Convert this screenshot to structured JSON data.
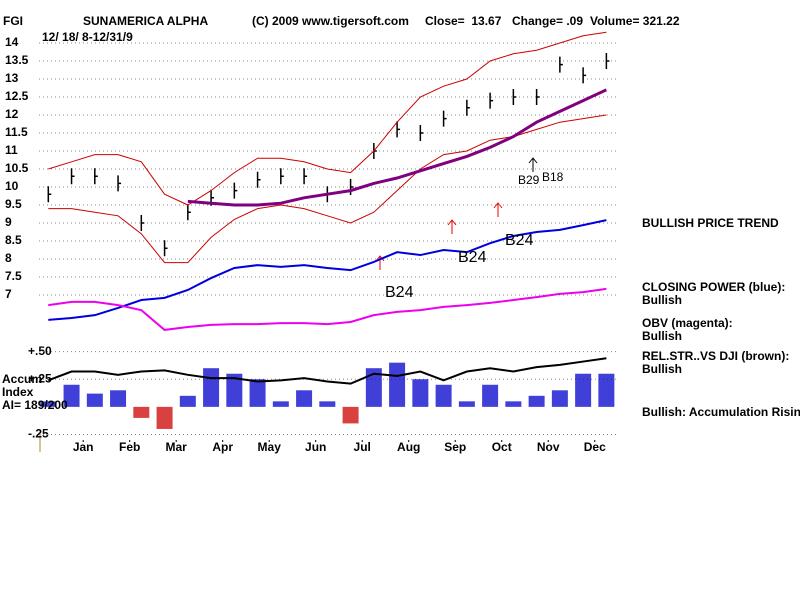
{
  "header": {
    "symbol": "FGI",
    "name": "SUNAMERICA ALPHA",
    "copyright": "(C) 2009 www.tigersoft.com",
    "close": "Close=  13.67",
    "change": "Change= .09",
    "volume": "Volume= 321.22",
    "dates": "12/ 18/ 8-12/31/9"
  },
  "chart_data": [
    {
      "type": "price",
      "note": "BULLISH PRICE TREND",
      "x": [
        -0.25,
        0.25,
        0.75,
        1.25,
        1.75,
        2.25,
        2.75,
        3.25,
        3.75,
        4.25,
        4.75,
        5.25,
        5.75,
        6.25,
        6.75,
        7.25,
        7.75,
        8.25,
        8.75,
        9.25,
        9.75,
        10.25,
        10.75,
        11.25,
        11.75
      ],
      "xlim": [
        -0.45,
        12
      ],
      "ylim": [
        5.75,
        14.25
      ],
      "yticks": [
        14,
        13.5,
        13,
        12.5,
        12,
        11.5,
        11,
        10.5,
        10,
        9.5,
        9,
        8.5,
        8,
        7.5,
        7
      ],
      "grid": true,
      "annotations": [
        "B24",
        "B24",
        "B24",
        "B29",
        "B18"
      ],
      "series": [
        {
          "style": "bar",
          "color": "#000000",
          "values": [
            9.8,
            10.3,
            10.3,
            10.1,
            9.0,
            8.3,
            9.3,
            9.7,
            9.9,
            10.2,
            10.3,
            10.3,
            9.8,
            10.0,
            11.0,
            11.6,
            11.5,
            11.9,
            12.2,
            12.4,
            12.5,
            12.5,
            13.4,
            13.1,
            13.5
          ]
        },
        {
          "style": "line",
          "color": "#cc0000",
          "line_width": 1,
          "values": [
            10.5,
            10.7,
            10.9,
            10.9,
            10.7,
            9.8,
            9.5,
            9.9,
            10.4,
            10.8,
            10.8,
            10.7,
            10.5,
            10.4,
            11.0,
            11.8,
            12.5,
            12.8,
            13.0,
            13.5,
            13.7,
            13.8,
            14.0,
            14.2,
            14.3
          ]
        },
        {
          "style": "line",
          "color": "#cc0000",
          "line_width": 1,
          "values": [
            9.4,
            9.4,
            9.3,
            9.2,
            8.7,
            7.9,
            7.9,
            8.6,
            9.1,
            9.4,
            9.5,
            9.4,
            9.2,
            9.0,
            9.3,
            9.9,
            10.5,
            10.9,
            11.0,
            11.3,
            11.4,
            11.6,
            11.8,
            11.9,
            12.0
          ]
        },
        {
          "style": "line",
          "color": "#800080",
          "line_width": 3,
          "values": [
            null,
            null,
            null,
            null,
            null,
            null,
            9.6,
            9.55,
            9.5,
            9.5,
            9.55,
            9.7,
            9.8,
            9.9,
            10.1,
            10.25,
            10.45,
            10.65,
            10.85,
            11.1,
            11.4,
            11.8,
            12.1,
            12.4,
            12.7
          ]
        },
        {
          "style": "line",
          "name": "CLOSING POWER (blue):",
          "status": "Bullish",
          "color": "#0000dd",
          "line_width": 2,
          "values": [
            6.31,
            6.36,
            6.44,
            6.64,
            6.86,
            6.92,
            7.14,
            7.47,
            7.75,
            7.83,
            7.78,
            7.83,
            7.75,
            7.69,
            7.92,
            8.19,
            8.11,
            8.25,
            8.19,
            8.44,
            8.64,
            8.75,
            8.81,
            8.94,
            9.08
          ]
        },
        {
          "style": "line",
          "name": "OBV (magenta):",
          "status": "Bullish",
          "color": "#ee00ee",
          "line_width": 2,
          "values": [
            6.72,
            6.81,
            6.81,
            6.72,
            6.58,
            6.03,
            6.11,
            6.17,
            6.19,
            6.19,
            6.22,
            6.22,
            6.19,
            6.25,
            6.44,
            6.53,
            6.58,
            6.67,
            6.72,
            6.78,
            6.86,
            6.94,
            7.03,
            7.08,
            7.17
          ]
        }
      ]
    },
    {
      "type": "indicator",
      "note": "Bullish: Accumulation Rising",
      "labels": [
        "Accum",
        "Index",
        "AI= 189/200"
      ],
      "x": [
        -0.25,
        0.25,
        0.75,
        1.25,
        1.75,
        2.25,
        2.75,
        3.25,
        3.75,
        4.25,
        4.75,
        5.25,
        5.75,
        6.25,
        6.75,
        7.25,
        7.75,
        8.25,
        8.75,
        9.25,
        9.75,
        10.25,
        10.75,
        11.25,
        11.75
      ],
      "xlim": [
        -0.45,
        12
      ],
      "xticks": [
        {
          "value": 0.5,
          "label": "Jan"
        },
        {
          "value": 1.5,
          "label": "Feb"
        },
        {
          "value": 2.5,
          "label": "Mar"
        },
        {
          "value": 3.5,
          "label": "Apr"
        },
        {
          "value": 4.5,
          "label": "May"
        },
        {
          "value": 5.5,
          "label": "Jun"
        },
        {
          "value": 6.5,
          "label": "Jul"
        },
        {
          "value": 7.5,
          "label": "Aug"
        },
        {
          "value": 8.5,
          "label": "Sep"
        },
        {
          "value": 9.5,
          "label": "Oct"
        },
        {
          "value": 10.5,
          "label": "Nov"
        },
        {
          "value": 11.5,
          "label": "Dec"
        }
      ],
      "ylim": [
        -0.3,
        0.56
      ],
      "yticks": [
        {
          "value": 0.5,
          "label": "+.50"
        },
        {
          "value": 0.25,
          "label": "+.25"
        },
        {
          "value": -0.25,
          "label": "-.25"
        }
      ],
      "grid": true,
      "series": [
        {
          "style": "bar",
          "color": "#0000cc",
          "negative_color": "#cc0000",
          "values": [
            0.05,
            0.2,
            0.12,
            0.15,
            -0.1,
            -0.2,
            0.1,
            0.35,
            0.3,
            0.25,
            0.05,
            0.15,
            0.05,
            -0.15,
            0.35,
            0.4,
            0.25,
            0.2,
            0.05,
            0.2,
            0.05,
            0.1,
            0.15,
            0.3,
            0.3
          ]
        },
        {
          "style": "line",
          "name": "REL.STR..VS DJI (brown):",
          "status": "Bullish",
          "color": "#000000",
          "line_width": 2,
          "values": [
            0.24,
            0.32,
            0.32,
            0.29,
            0.32,
            0.33,
            0.29,
            0.26,
            0.26,
            0.23,
            0.24,
            0.26,
            0.23,
            0.21,
            0.3,
            0.28,
            0.32,
            0.24,
            0.32,
            0.35,
            0.32,
            0.36,
            0.38,
            0.41,
            0.44
          ]
        }
      ]
    }
  ]
}
